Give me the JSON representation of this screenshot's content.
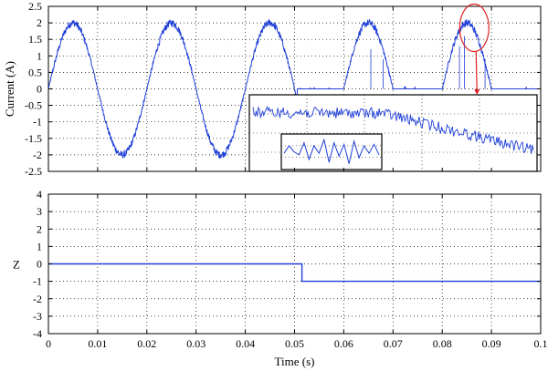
{
  "chart_data": [
    {
      "type": "line",
      "ylabel": "Current (A)",
      "xlim": [
        0,
        0.1
      ],
      "ylim": [
        -2.5,
        2.5
      ],
      "xticks": [
        "0",
        "0.01",
        "0.02",
        "0.03",
        "0.04",
        "0.05",
        "0.06",
        "0.07",
        "0.08",
        "0.09",
        "0.1"
      ],
      "yticks": [
        "2.5",
        "2",
        "1.5",
        "1",
        "0.5",
        "0",
        "-0.5",
        "-1",
        "-1.5",
        "-2",
        "-2.5"
      ],
      "grid": true,
      "series": [
        {
          "color": "#1f3fd8",
          "description_points": {
            "x": [
              0,
              0.005,
              0.01,
              0.015,
              0.02,
              0.025,
              0.03,
              0.035,
              0.04,
              0.045,
              0.05,
              0.055,
              0.06,
              0.065,
              0.07,
              0.075,
              0.08,
              0.085,
              0.09,
              0.1
            ],
            "y": [
              0,
              2.0,
              0,
              -2.0,
              0,
              2.0,
              0,
              -2.0,
              0,
              2.0,
              0,
              0,
              0,
              2.0,
              0,
              0,
              0,
              2.05,
              0,
              0
            ]
          }
        }
      ],
      "annotations": [
        {
          "type": "ellipse-highlight",
          "color": "#e02020",
          "x": 0.0865,
          "y": 1.85
        },
        {
          "type": "zoom-inset",
          "border": "#000000"
        }
      ]
    },
    {
      "type": "line",
      "xlabel": "Time (s)",
      "ylabel": "Z",
      "xlim": [
        0,
        0.1
      ],
      "ylim": [
        -4,
        4
      ],
      "xticks": [
        "0",
        "0.01",
        "0.02",
        "0.03",
        "0.04",
        "0.05",
        "0.06",
        "0.07",
        "0.08",
        "0.09",
        "0.1"
      ],
      "yticks": [
        "4",
        "3",
        "2",
        "1",
        "0",
        "-1",
        "-2",
        "-3",
        "-4"
      ],
      "grid": true,
      "series": [
        {
          "color": "#1f3fd8",
          "x": [
            0,
            0.0515,
            0.0515,
            0.1
          ],
          "y": [
            0,
            0,
            -1,
            -1
          ]
        }
      ]
    }
  ]
}
